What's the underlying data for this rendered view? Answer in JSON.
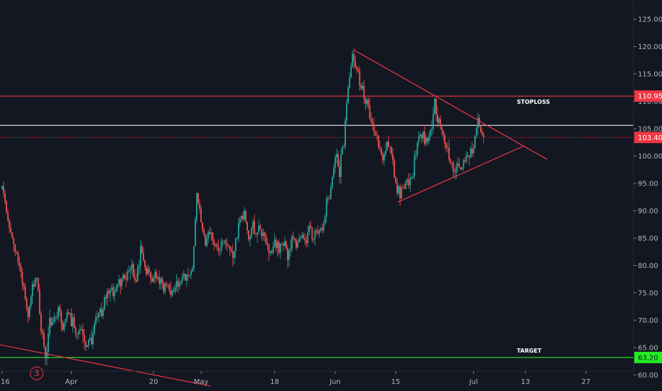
{
  "chart_data": {
    "type": "candlestick",
    "title": "",
    "xlabel": "",
    "ylabel": "",
    "ylim": [
      57.5,
      127.0
    ],
    "grid": false,
    "y_ticks": [
      60.0,
      65.0,
      70.0,
      75.0,
      80.0,
      85.0,
      90.0,
      95.0,
      100.0,
      105.0,
      110.0,
      115.0,
      120.0,
      125.0
    ],
    "x_ticks": [
      {
        "label": "16",
        "day": 0
      },
      {
        "label": "Apr",
        "day": 16
      },
      {
        "label": "20",
        "day": 35
      },
      {
        "label": "May",
        "day": 46
      },
      {
        "label": "18",
        "day": 63
      },
      {
        "label": "Jun",
        "day": 77
      },
      {
        "label": "15",
        "day": 91
      },
      {
        "label": "Jul",
        "day": 109
      },
      {
        "label": "13",
        "day": 121
      },
      {
        "label": "27",
        "day": 135
      }
    ],
    "xlim_days": [
      -0.5,
      146
    ],
    "price_path": [
      [
        0,
        94
      ],
      [
        2,
        86
      ],
      [
        4,
        80
      ],
      [
        5,
        76
      ],
      [
        6,
        70
      ],
      [
        7,
        76
      ],
      [
        8,
        79
      ],
      [
        9,
        68
      ],
      [
        10,
        64
      ],
      [
        11,
        69
      ],
      [
        13,
        72
      ],
      [
        14,
        68
      ],
      [
        15,
        71
      ],
      [
        16,
        70
      ],
      [
        17,
        67
      ],
      [
        18,
        68
      ],
      [
        19,
        66
      ],
      [
        20,
        65.5
      ],
      [
        22,
        70
      ],
      [
        24,
        74
      ],
      [
        26,
        76
      ],
      [
        28,
        78
      ],
      [
        30,
        79
      ],
      [
        31,
        77
      ],
      [
        32,
        83
      ],
      [
        33,
        80
      ],
      [
        35,
        77
      ],
      [
        36,
        78
      ],
      [
        37,
        76
      ],
      [
        38,
        77
      ],
      [
        39,
        75.5
      ],
      [
        41,
        77
      ],
      [
        43,
        79
      ],
      [
        44,
        79
      ],
      [
        45,
        93
      ],
      [
        46,
        88
      ],
      [
        47,
        84
      ],
      [
        48,
        86
      ],
      [
        50,
        83
      ],
      [
        52,
        84
      ],
      [
        53,
        82
      ],
      [
        54,
        84
      ],
      [
        55,
        88
      ],
      [
        56,
        90
      ],
      [
        57,
        85
      ],
      [
        58,
        87
      ],
      [
        60,
        86
      ],
      [
        61,
        84
      ],
      [
        62,
        82
      ],
      [
        63,
        85
      ],
      [
        64,
        83
      ],
      [
        65,
        84
      ],
      [
        66,
        82
      ],
      [
        67,
        85
      ],
      [
        68,
        84
      ],
      [
        69,
        86
      ],
      [
        70,
        84
      ],
      [
        71,
        86
      ],
      [
        72,
        85
      ],
      [
        73,
        87
      ],
      [
        74,
        86
      ],
      [
        75,
        91
      ],
      [
        76,
        94
      ],
      [
        77,
        100
      ],
      [
        78,
        97
      ],
      [
        79,
        103
      ],
      [
        80,
        112
      ],
      [
        81,
        119
      ],
      [
        82,
        116
      ],
      [
        83,
        113
      ],
      [
        84,
        110
      ],
      [
        85,
        108
      ],
      [
        86,
        104
      ],
      [
        87,
        102
      ],
      [
        88,
        99
      ],
      [
        89,
        103
      ],
      [
        90,
        101
      ],
      [
        91,
        95
      ],
      [
        92,
        93
      ],
      [
        93,
        94
      ],
      [
        94,
        95
      ],
      [
        95,
        97
      ],
      [
        96,
        103
      ],
      [
        97,
        104
      ],
      [
        98,
        103
      ],
      [
        99,
        104
      ],
      [
        100,
        110
      ],
      [
        101,
        106
      ],
      [
        102,
        104
      ],
      [
        103,
        101
      ],
      [
        104,
        99
      ],
      [
        105,
        97
      ],
      [
        106,
        98
      ],
      [
        107,
        99
      ],
      [
        108,
        101
      ],
      [
        109,
        102
      ],
      [
        110,
        106
      ],
      [
        111,
        104
      ],
      [
        111.5,
        103.4
      ]
    ],
    "horizontal_lines": [
      {
        "name": "STOPLOSS",
        "price": 110.95,
        "color": "#f23645",
        "style": "solid",
        "label": "STOPLOSS",
        "label_day": 119
      },
      {
        "name": "white-level",
        "price": 105.6,
        "color": "#d1d4dc",
        "style": "solid"
      },
      {
        "name": "last-price",
        "price": 103.4,
        "color": "#f23645",
        "style": "dotted"
      },
      {
        "name": "TARGET",
        "price": 63.2,
        "color": "#22ee22",
        "style": "solid",
        "label": "TARGET",
        "label_day": 119
      }
    ],
    "price_badges": [
      {
        "name": "stoploss-badge",
        "price": 110.95,
        "text": "110.95",
        "bg": "#f23645",
        "fg": "#ffffff"
      },
      {
        "name": "last-price-badge",
        "price": 103.4,
        "text": "103.40",
        "bg": "#f23645",
        "fg": "#ffffff"
      },
      {
        "name": "target-badge",
        "price": 63.2,
        "text": "63.20",
        "bg": "#22ee22",
        "fg": "#131722"
      }
    ],
    "trendlines": [
      {
        "name": "triangle-upper",
        "from": [
          81.5,
          119.3
        ],
        "to": [
          126,
          99.4
        ],
        "color": "#f23645"
      },
      {
        "name": "triangle-lower",
        "from": [
          91.5,
          91.6
        ],
        "to": [
          120.5,
          101.8
        ],
        "color": "#f23645"
      },
      {
        "name": "downtrend-line",
        "from": [
          -1,
          65.6
        ],
        "to": [
          48,
          58.0
        ],
        "color": "#f23645"
      }
    ],
    "annotations": [
      {
        "name": "wave-3-marker",
        "text": "3",
        "day": 8,
        "price": 60.3,
        "color": "#f23645"
      }
    ],
    "colors": {
      "background": "#131722",
      "up": "#26a69a",
      "down": "#ef5350",
      "axis_text": "#b2b5be",
      "axis_line": "#2a2e39"
    }
  }
}
